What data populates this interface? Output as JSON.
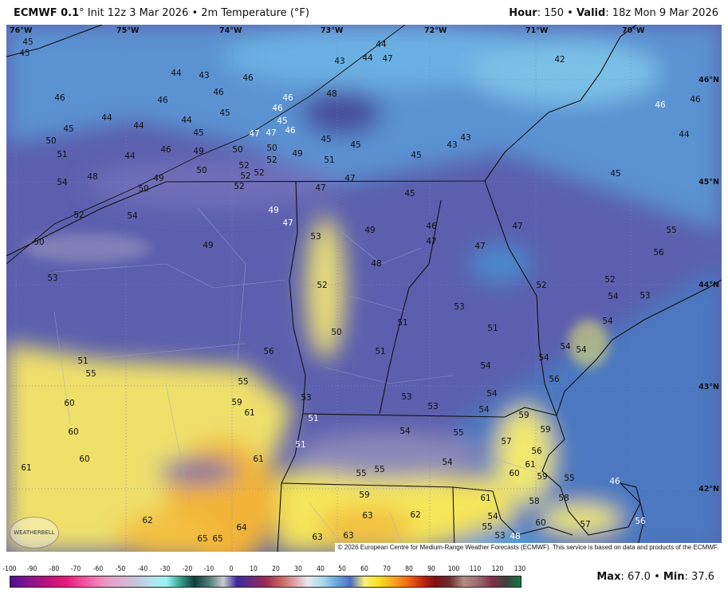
{
  "header": {
    "model": "ECMWF 0.1",
    "model_deg": "°",
    "init": " Init 12z 3 Mar 2026 • 2m Temperature (°F)",
    "hour_label": "Hour",
    "hour_value": ": 150 • ",
    "valid_label": "Valid",
    "valid_value": ": 18z Mon 9 Mar 2026"
  },
  "longitude_labels": [
    "76°W",
    "75°W",
    "74°W",
    "73°W",
    "72°W",
    "71°W",
    "70°W"
  ],
  "latitude_labels": [
    "46°N",
    "45°N",
    "44°N",
    "43°N",
    "42°N"
  ],
  "temperature_labels": [
    45,
    45,
    44,
    43,
    46,
    44,
    44,
    47,
    43,
    42,
    46,
    46,
    46,
    48,
    46,
    44,
    44,
    44,
    45,
    45,
    46,
    45,
    46,
    47,
    47,
    45,
    50,
    51,
    46,
    49,
    50,
    50,
    49,
    45,
    45,
    45,
    43,
    43,
    46,
    46,
    44,
    45,
    44,
    48,
    54,
    49,
    50,
    50,
    52,
    52,
    52,
    52,
    52,
    51,
    47,
    47,
    45,
    52,
    54,
    49,
    47,
    46,
    47,
    55,
    49,
    53,
    47,
    47,
    56,
    50,
    49,
    48,
    53,
    52,
    52,
    52,
    54,
    53,
    53,
    54,
    51,
    51,
    50,
    54,
    54,
    54,
    56,
    51,
    54,
    56,
    51,
    55,
    55,
    53,
    59,
    61,
    60,
    53,
    53,
    54,
    54,
    59,
    51,
    60,
    54,
    55,
    59,
    57,
    51,
    60,
    61,
    61,
    54,
    56,
    61,
    60,
    59,
    55,
    55,
    55,
    46,
    59,
    61,
    58,
    58,
    62,
    63,
    62,
    64,
    54,
    55,
    53,
    60,
    57,
    56,
    65,
    65,
    63,
    63,
    48
  ],
  "credit": "© 2026 European Centre for Medium-Range Weather Forecasts (ECMWF). This service is based on data and products of the ECMWF.",
  "logo_text": "WEATHERBELL",
  "colorbar": {
    "ticks": [
      "-100",
      "-90",
      "-80",
      "-70",
      "-60",
      "-50",
      "-40",
      "-30",
      "-20",
      "-10",
      "0",
      "10",
      "20",
      "30",
      "40",
      "50",
      "60",
      "70",
      "80",
      "90",
      "100",
      "110",
      "120",
      "130"
    ],
    "colors": [
      "#4b0f8c",
      "#7a1590",
      "#a0157e",
      "#c8137a",
      "#e81a7c",
      "#f04a9a",
      "#f277b4",
      "#e8a0c8",
      "#d6b4d4",
      "#c3c8e0",
      "#b4e4ec",
      "#98f4f4",
      "#3aa090",
      "#0e3e3a",
      "#4e7a78",
      "#c8cccc",
      "#3c2a9c",
      "#6a2a80",
      "#9a2a50",
      "#c46060",
      "#e0a0a0",
      "#e8e8f0",
      "#a8dcea",
      "#6aa8dc",
      "#4e6ec0",
      "#f6f27a",
      "#f8e020",
      "#f8a820",
      "#f06a10",
      "#c82a10",
      "#7a1010",
      "#6a3030",
      "#b48c84",
      "#9a6a70",
      "#803048",
      "#404040",
      "#107a40"
    ]
  },
  "max_label": "Max",
  "max_value": ": 67.0 • ",
  "min_label": "Min",
  "min_value": ": 37.6",
  "colors": {
    "cold_blue": "#5b9ad6",
    "cool_purple": "#5c5aa8",
    "warm_yellow": "#f5e65a",
    "warm_orange": "#f2b437",
    "ocean": "#4c78c0"
  }
}
